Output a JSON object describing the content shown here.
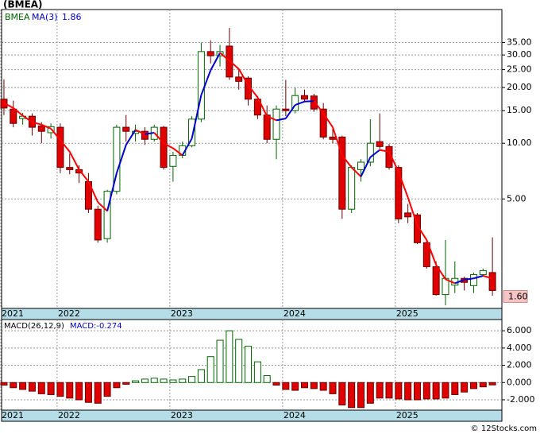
{
  "chart_data": [
    {
      "type": "candlestick",
      "title": "(BMEA)",
      "symbol": "BMEA",
      "ma_name": "MA(3)",
      "log_scale": true,
      "grid": true,
      "up_color": "#006400",
      "down_color": "#e00000",
      "ma_up_color": "#0000cc",
      "ma_down_color": "#ff0000",
      "categories": [
        "2021",
        null,
        null,
        null,
        null,
        null,
        "2022",
        null,
        null,
        null,
        null,
        null,
        null,
        null,
        null,
        null,
        null,
        null,
        "2023",
        null,
        null,
        null,
        null,
        null,
        null,
        null,
        null,
        null,
        null,
        null,
        "2024",
        null,
        null,
        null,
        null,
        null,
        null,
        null,
        null,
        null,
        null,
        null,
        "2025",
        null,
        null,
        null,
        null,
        null,
        null,
        null,
        null,
        null,
        null
      ],
      "open": [
        17.3,
        15.3,
        13.6,
        14,
        12.4,
        11.4,
        12.2,
        7.4,
        7.2,
        6.2,
        4.4,
        3.05,
        5.5,
        12.2,
        11.3,
        11.6,
        10.5,
        12.2,
        7.5,
        8.6,
        9.7,
        13.5,
        31.3,
        29.7,
        33.5,
        22.8,
        22.5,
        17.3,
        14.2,
        10.5,
        15.3,
        15,
        18.1,
        18,
        15.3,
        10.8,
        10.8,
        4.4,
        7.2,
        7.9,
        10.2,
        9.6,
        7.4,
        4.2,
        4.1,
        2.9,
        2.15,
        1.52,
        1.71,
        1.86,
        1.7,
        1.95,
        2.0
      ],
      "high": [
        22.1,
        17,
        14.6,
        14.5,
        13,
        12.8,
        12.8,
        8.8,
        7.6,
        6.9,
        4.6,
        5.6,
        12.6,
        14.2,
        12.6,
        12.2,
        12.6,
        12.4,
        9,
        10.2,
        14,
        35,
        36,
        34,
        42,
        25,
        23,
        18,
        16,
        16,
        22,
        20,
        19.5,
        18.5,
        16.5,
        12,
        11,
        7.6,
        8.2,
        13.5,
        14.5,
        9.9,
        7.6,
        4.7,
        4.2,
        3.0,
        2.3,
        3.0,
        2.3,
        1.9,
        2.0,
        2.1,
        3.1
      ],
      "low": [
        14.2,
        12.2,
        12.6,
        11,
        10,
        10.6,
        6.9,
        6.8,
        6.1,
        4.2,
        2.9,
        2.9,
        5.3,
        10.2,
        10.2,
        9.8,
        10.2,
        7.2,
        6.2,
        8.3,
        9.5,
        13,
        27,
        26,
        22,
        19.5,
        16,
        13.5,
        10,
        8.2,
        14,
        14.5,
        16.8,
        14.8,
        10.5,
        10,
        3.9,
        4.2,
        6.2,
        7.5,
        9.3,
        7.2,
        3.7,
        3.7,
        2.85,
        2.1,
        1.5,
        1.33,
        1.55,
        1.6,
        1.55,
        1.9,
        1.5
      ],
      "close": [
        15.5,
        12.8,
        14,
        12.2,
        11.6,
        12.3,
        7.4,
        7.2,
        6.9,
        4.4,
        3.0,
        5.5,
        12.2,
        11.6,
        11.6,
        10.5,
        12.2,
        7.4,
        8.6,
        9.7,
        13.5,
        31.3,
        29.7,
        31.3,
        22.8,
        21.6,
        17.3,
        14.2,
        10.5,
        15.3,
        15,
        18.1,
        17.3,
        15.3,
        10.8,
        10.5,
        4.4,
        7.4,
        7.9,
        10,
        9.6,
        7.4,
        3.9,
        4.0,
        2.9,
        2.15,
        1.52,
        1.86,
        1.86,
        1.77,
        1.95,
        2.05,
        1.6
      ],
      "close_label": "1.60",
      "ma": [
        16.5,
        15.5,
        14.1,
        13.0,
        12.6,
        12.0,
        10.4,
        9.0,
        7.2,
        6.2,
        4.8,
        4.3,
        6.9,
        9.8,
        11.8,
        11.2,
        11.4,
        10.0,
        9.4,
        8.6,
        10.6,
        18.2,
        24.8,
        30.8,
        27.9,
        25.2,
        20.6,
        17.7,
        14.0,
        13.3,
        13.6,
        16.1,
        16.8,
        16.9,
        14.5,
        12.2,
        8.6,
        7.4,
        6.6,
        8.4,
        9.2,
        9.0,
        7.0,
        5.1,
        3.6,
        3.0,
        2.2,
        1.84,
        1.75,
        1.83,
        1.86,
        1.92,
        1.86
      ],
      "ylim": [
        1.28,
        52.8
      ],
      "yticks": [
        {
          "value": 5,
          "label": "5.00"
        },
        {
          "value": 10,
          "label": "10.00"
        },
        {
          "value": 15,
          "label": "15.00"
        },
        {
          "value": 20,
          "label": "20.00"
        },
        {
          "value": 25,
          "label": "25.00"
        },
        {
          "value": 30,
          "label": "30.00"
        },
        {
          "value": 35,
          "label": "35.00"
        }
      ]
    },
    {
      "type": "histogram",
      "title": "MACD(26,12,9)",
      "pos_color": "#006400",
      "neg_color": "#e00000",
      "grid": true,
      "values": [
        -0.3,
        -0.6,
        -0.8,
        -1.0,
        -1.3,
        -1.4,
        -1.6,
        -1.8,
        -2.0,
        -2.3,
        -2.4,
        -1.6,
        -0.6,
        -0.2,
        0.2,
        0.4,
        0.5,
        0.4,
        0.3,
        0.4,
        0.7,
        1.5,
        3.0,
        4.9,
        6.0,
        5.0,
        4.2,
        2.4,
        0.8,
        -0.3,
        -0.8,
        -0.9,
        -0.6,
        -0.7,
        -0.9,
        -1.3,
        -2.6,
        -2.9,
        -2.9,
        -2.4,
        -1.8,
        -1.8,
        -1.9,
        -2.0,
        -2.0,
        -1.9,
        -1.9,
        -1.8,
        -1.4,
        -1.1,
        -0.7,
        -0.5,
        -0.274
      ],
      "last_label": "MACD:-0.274",
      "ylim": [
        -3.2,
        7.3
      ],
      "yticks": [
        {
          "value": -2,
          "label": "-2.000"
        },
        {
          "value": 0,
          "label": "0.000"
        },
        {
          "value": 2,
          "label": "2.000"
        },
        {
          "value": 4,
          "label": "4.000"
        },
        {
          "value": 6,
          "label": "6.000"
        }
      ]
    }
  ],
  "footer": "© 12Stocks.com"
}
